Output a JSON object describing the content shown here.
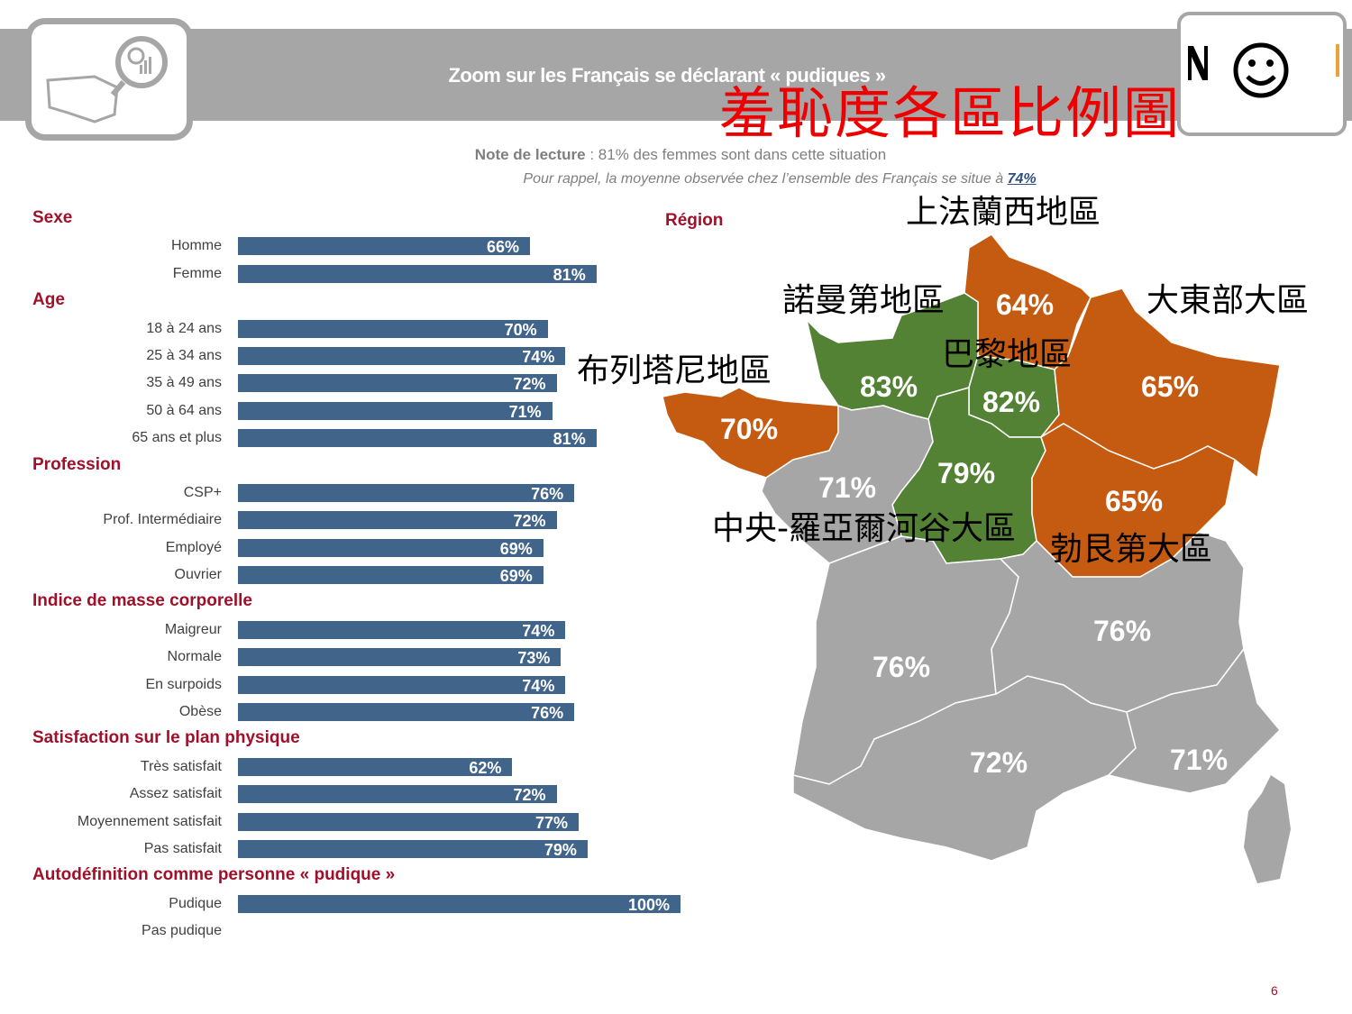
{
  "header": {
    "title": "Zoom sur les Français se déclarant « pudiques »",
    "annotation_title": "羞恥度各區比例圖",
    "note_label": "Note de lecture",
    "note_text": " : 81% des femmes sont dans cette situation",
    "reminder_text": "Pour rappel, la moyenne observée chez l’ensemble des Français se situe à ",
    "reminder_value": "74%"
  },
  "colors": {
    "bar": "#41648b",
    "orange": "#c55a11",
    "green": "#548235",
    "gray": "#a6a6a6",
    "heading": "#a0102a"
  },
  "chart_data": {
    "type": "bar",
    "orientation": "horizontal",
    "xlim": [
      0,
      100
    ],
    "groups": [
      {
        "name": "Sexe",
        "items": [
          {
            "label": "Homme",
            "value": 66,
            "text": "66%"
          },
          {
            "label": "Femme",
            "value": 81,
            "text": "81%"
          }
        ]
      },
      {
        "name": "Age",
        "items": [
          {
            "label": "18 à 24 ans",
            "value": 70,
            "text": "70%"
          },
          {
            "label": "25 à 34 ans",
            "value": 74,
            "text": "74%"
          },
          {
            "label": "35 à 49 ans",
            "value": 72,
            "text": "72%"
          },
          {
            "label": "50 à 64 ans",
            "value": 71,
            "text": "71%"
          },
          {
            "label": "65 ans et plus",
            "value": 81,
            "text": "81%"
          }
        ]
      },
      {
        "name": "Profession",
        "items": [
          {
            "label": "CSP+",
            "value": 76,
            "text": "76%"
          },
          {
            "label": "Prof. Intermédiaire",
            "value": 72,
            "text": "72%"
          },
          {
            "label": "Employé",
            "value": 69,
            "text": "69%"
          },
          {
            "label": "Ouvrier",
            "value": 69,
            "text": "69%"
          }
        ]
      },
      {
        "name": "Indice de masse corporelle",
        "items": [
          {
            "label": "Maigreur",
            "value": 74,
            "text": "74%"
          },
          {
            "label": "Normale",
            "value": 73,
            "text": "73%"
          },
          {
            "label": "En surpoids",
            "value": 74,
            "text": "74%"
          },
          {
            "label": "Obèse",
            "value": 76,
            "text": "76%"
          }
        ]
      },
      {
        "name": "Satisfaction sur le plan physique",
        "items": [
          {
            "label": "Très satisfait",
            "value": 62,
            "text": "62%"
          },
          {
            "label": "Assez satisfait",
            "value": 72,
            "text": "72%"
          },
          {
            "label": "Moyennement satisfait",
            "value": 77,
            "text": "77%"
          },
          {
            "label": "Pas satisfait",
            "value": 79,
            "text": "79%"
          }
        ]
      },
      {
        "name": "Autodéfinition comme personne « pudique »",
        "items": [
          {
            "label": "Pudique",
            "value": 100,
            "text": "100%"
          },
          {
            "label": "Pas pudique",
            "value": null,
            "text": null
          }
        ]
      }
    ],
    "map": {
      "title": "Région",
      "regions": [
        {
          "key": "hdf",
          "value": 64,
          "text": "64%",
          "color": "orange",
          "zh": "上法蘭西地區"
        },
        {
          "key": "nor",
          "value": 83,
          "text": "83%",
          "color": "green",
          "zh": "諾曼第地區"
        },
        {
          "key": "idf",
          "value": 82,
          "text": "82%",
          "color": "green",
          "zh": "巴黎地區"
        },
        {
          "key": "ges",
          "value": 65,
          "text": "65%",
          "color": "orange",
          "zh": "大東部大區"
        },
        {
          "key": "bre",
          "value": 70,
          "text": "70%",
          "color": "orange",
          "zh": "布列塔尼地區"
        },
        {
          "key": "cvl",
          "value": 79,
          "text": "79%",
          "color": "green",
          "zh": null
        },
        {
          "key": "bfc",
          "value": 65,
          "text": "65%",
          "color": "orange",
          "zh": "勃艮第大區"
        },
        {
          "key": "pdl",
          "value": 71,
          "text": "71%",
          "color": "gray",
          "zh": "中央-羅亞爾河谷大區"
        },
        {
          "key": "naq",
          "value": 76,
          "text": "76%",
          "color": "gray",
          "zh": null
        },
        {
          "key": "ara",
          "value": 76,
          "text": "76%",
          "color": "gray",
          "zh": null
        },
        {
          "key": "occ",
          "value": 72,
          "text": "72%",
          "color": "gray",
          "zh": null
        },
        {
          "key": "pac",
          "value": 71,
          "text": "71%",
          "color": "gray",
          "zh": null
        }
      ]
    }
  },
  "page_number": "6"
}
